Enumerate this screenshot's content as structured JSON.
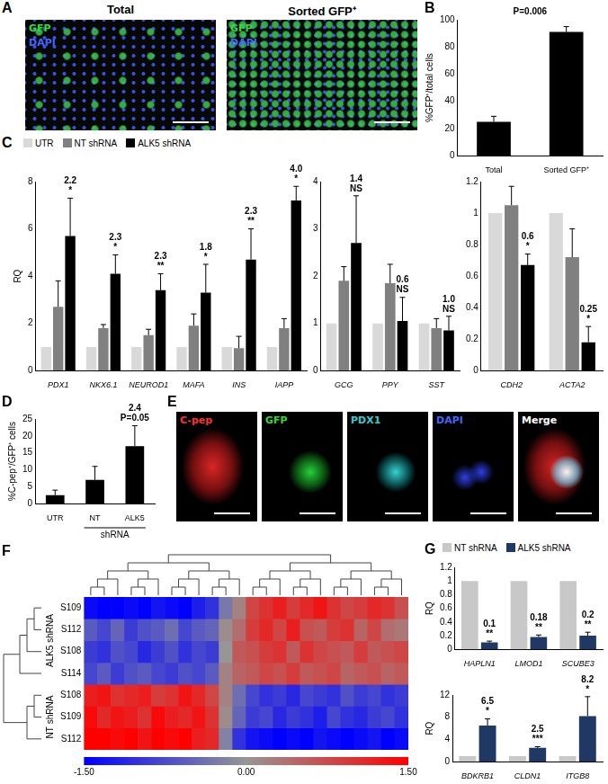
{
  "images": [
    {
      "panel": "A",
      "items": [
        {
          "title": "Total",
          "labels": [
            {
              "text": "GFP",
              "color": "#33dd33"
            },
            {
              "text": "DAPI",
              "color": "#4466ff"
            }
          ]
        },
        {
          "title": "Sorted GFP⁺",
          "labels": [
            {
              "text": "GFP",
              "color": "#33dd33"
            },
            {
              "text": "DAPI",
              "color": "#4466ff"
            }
          ]
        }
      ]
    },
    {
      "panel": "E",
      "items": [
        {
          "labels": [
            {
              "text": "C-pep",
              "color": "#ff3030"
            }
          ]
        },
        {
          "labels": [
            {
              "text": "GFP",
              "color": "#33dd33"
            }
          ]
        },
        {
          "labels": [
            {
              "text": "PDX1",
              "color": "#33cccc"
            }
          ]
        },
        {
          "labels": [
            {
              "text": "DAPI",
              "color": "#4466ff"
            }
          ]
        },
        {
          "labels": [
            {
              "text": "Merge",
              "color": "#ffffff"
            }
          ]
        }
      ]
    }
  ],
  "chart_data": [
    {
      "panel": "B",
      "type": "bar",
      "categories": [
        "Total",
        "Sorted GFP⁺"
      ],
      "values": [
        25,
        91
      ],
      "errors": [
        4,
        4
      ],
      "color": "#000000",
      "ylabel": "%GFP⁺/total cells",
      "ylim": [
        0,
        100
      ],
      "yticks": [
        0,
        20,
        40,
        60,
        80,
        100
      ],
      "annotation": "P=0.006"
    },
    {
      "panel": "C",
      "type": "bar",
      "legend": "top",
      "categories": [
        "PDX1",
        "NKX6.1",
        "NEUROD1",
        "MAFA",
        "INS",
        "IAPP"
      ],
      "series": [
        {
          "name": "UTR",
          "color": "#d9d9d9",
          "values": [
            1,
            1,
            1,
            1,
            1,
            1
          ]
        },
        {
          "name": "NT shRNA",
          "color": "#808080",
          "values": [
            2.7,
            1.8,
            1.5,
            1.9,
            0.95,
            1.8
          ],
          "errors": [
            1.1,
            0.15,
            0.25,
            0.5,
            0.5,
            0.4
          ]
        },
        {
          "name": "ALK5 shRNA",
          "color": "#000000",
          "values": [
            5.7,
            4.1,
            3.4,
            3.3,
            4.7,
            7.2
          ],
          "errors": [
            1.6,
            0.8,
            0.7,
            1.2,
            1.3,
            0.6
          ]
        }
      ],
      "ylabel": "RQ",
      "ylim": [
        0,
        8
      ],
      "yticks": [
        0,
        2,
        4,
        6,
        8
      ],
      "annotations": [
        [
          "2.2",
          "*"
        ],
        [
          "2.3",
          "*"
        ],
        [
          "2.3",
          "**"
        ],
        [
          "1.8",
          "*"
        ],
        [
          "2.3",
          "**"
        ],
        [
          "4.0",
          "*"
        ]
      ]
    },
    {
      "type": "bar",
      "categories": [
        "GCG",
        "PPY",
        "SST"
      ],
      "series": [
        {
          "name": "UTR",
          "color": "#d9d9d9",
          "values": [
            1,
            1,
            1
          ]
        },
        {
          "name": "NT shRNA",
          "color": "#808080",
          "values": [
            1.9,
            1.85,
            0.9
          ],
          "errors": [
            0.3,
            0.4,
            0.2
          ]
        },
        {
          "name": "ALK5 shRNA",
          "color": "#000000",
          "values": [
            2.7,
            1.05,
            0.85
          ],
          "errors": [
            1.0,
            0.5,
            0.3
          ]
        }
      ],
      "ylim": [
        0,
        4
      ],
      "yticks": [
        0,
        1,
        2,
        3,
        4
      ],
      "annotations": [
        [
          "1.4",
          "NS"
        ],
        [
          "0.6",
          "NS"
        ],
        [
          "1.0",
          "NS"
        ]
      ]
    },
    {
      "type": "bar",
      "categories": [
        "CDH2",
        "ACTA2"
      ],
      "series": [
        {
          "name": "UTR",
          "color": "#d9d9d9",
          "values": [
            1,
            1
          ]
        },
        {
          "name": "NT shRNA",
          "color": "#808080",
          "values": [
            1.05,
            0.72
          ],
          "errors": [
            0.12,
            0.18
          ]
        },
        {
          "name": "ALK5 shRNA",
          "color": "#000000",
          "values": [
            0.67,
            0.18
          ],
          "errors": [
            0.07,
            0.1
          ]
        }
      ],
      "ylim": [
        0,
        1.2
      ],
      "yticks": [
        0,
        0.2,
        0.4,
        0.6,
        0.8,
        1,
        1.2
      ],
      "annotations": [
        [
          "0.6",
          "*"
        ],
        [
          "0.25",
          "*"
        ]
      ]
    },
    {
      "panel": "D",
      "type": "bar",
      "categories": [
        "UTR",
        "NT",
        "ALK5"
      ],
      "values": [
        2.5,
        7,
        17
      ],
      "errors": [
        1.5,
        4,
        6
      ],
      "color": "#000000",
      "group": {
        "text": "shRNA",
        "categories": [
          "NT",
          "ALK5"
        ]
      },
      "ylabel": "%C-pep⁺/GFP⁺ cells",
      "ylim": [
        0,
        25
      ],
      "yticks": [
        0,
        5,
        10,
        15,
        20,
        25
      ],
      "annotations": [
        null,
        null,
        [
          "2.4",
          "P=0.05"
        ]
      ]
    },
    {
      "panel": "F",
      "type": "heatmap",
      "row_groups": [
        {
          "label": "ALK5 shRNA",
          "rows": [
            "S109",
            "S112",
            "S108",
            "S114"
          ]
        },
        {
          "label": "NT shRNA",
          "rows": [
            "S108",
            "S109",
            "S112"
          ]
        }
      ],
      "cells": [
        [
          -1.4,
          -1.5,
          -1.5,
          -1.4,
          -1.5,
          -1.3,
          -1.4,
          -1.5,
          -1.2,
          -1.0,
          -0.3,
          0.2,
          0.8,
          1.0,
          1.2,
          0.9,
          1.1,
          1.3,
          1.0,
          0.8,
          0.9,
          1.1,
          1.0,
          0.7
        ],
        [
          -0.6,
          -0.8,
          -0.5,
          -0.9,
          -0.7,
          -0.6,
          -0.4,
          -0.8,
          -0.6,
          -0.5,
          0.1,
          0.4,
          0.9,
          1.1,
          0.8,
          1.2,
          0.7,
          0.6,
          0.9,
          1.0,
          0.5,
          0.8,
          0.4,
          0.3
        ],
        [
          -0.9,
          -1.0,
          -0.7,
          -0.8,
          -1.1,
          -0.9,
          -0.7,
          -1.0,
          -0.8,
          -0.9,
          0.0,
          0.6,
          0.7,
          0.9,
          1.0,
          0.6,
          1.0,
          0.8,
          0.7,
          0.6,
          0.9,
          0.6,
          0.7,
          0.8
        ],
        [
          -0.8,
          -0.6,
          -0.9,
          -0.7,
          -0.6,
          -0.8,
          -0.9,
          -0.7,
          -0.8,
          -0.6,
          0.2,
          0.5,
          0.6,
          0.8,
          0.7,
          0.9,
          0.6,
          0.7,
          0.8,
          0.5,
          0.6,
          0.7,
          0.5,
          0.6
        ],
        [
          1.2,
          1.3,
          1.0,
          1.1,
          1.2,
          0.9,
          1.0,
          1.3,
          1.1,
          0.8,
          0.2,
          -0.4,
          -0.8,
          -1.0,
          -0.9,
          -1.1,
          -0.8,
          -0.9,
          -1.0,
          -0.7,
          -0.9,
          -0.8,
          -1.0,
          -0.9
        ],
        [
          1.4,
          1.1,
          1.3,
          1.2,
          1.0,
          1.4,
          1.2,
          1.1,
          1.3,
          1.0,
          0.1,
          -0.5,
          -0.9,
          -0.8,
          -1.1,
          -0.9,
          -1.0,
          -1.2,
          -0.8,
          -1.0,
          -1.1,
          -0.9,
          -0.8,
          -1.0
        ],
        [
          1.5,
          1.5,
          1.4,
          1.5,
          1.3,
          1.5,
          1.4,
          1.5,
          1.2,
          1.1,
          -0.2,
          -1.0,
          -1.3,
          -1.4,
          -1.5,
          -1.4,
          -1.5,
          -1.3,
          -1.4,
          -1.5,
          -1.4,
          -1.3,
          -1.5,
          -1.4
        ]
      ],
      "colorbar": {
        "range": [
          -1.5,
          1.5
        ],
        "ticks": [
          {
            "value": -1.5,
            "label": "-1.50"
          },
          {
            "value": 0,
            "label": "0.00"
          },
          {
            "value": 1.5,
            "label": "1.50"
          }
        ]
      }
    },
    {
      "panel": "G",
      "type": "bar",
      "legend": "top",
      "categories": [
        "HAPLN1",
        "LMOD1",
        "SCUBE3"
      ],
      "series": [
        {
          "name": "NT shRNA",
          "color": "#c8c8c8",
          "values": [
            1,
            1,
            1
          ]
        },
        {
          "name": "ALK5 shRNA",
          "color": "#1f3864",
          "values": [
            0.1,
            0.18,
            0.2
          ],
          "errors": [
            0.02,
            0.03,
            0.05
          ]
        }
      ],
      "ylabel": "RQ",
      "ylim": [
        0,
        1.2
      ],
      "yticks": [
        0,
        0.2,
        0.4,
        0.6,
        0.8,
        1,
        1.2
      ],
      "annotations": [
        [
          "0.1",
          "**"
        ],
        [
          "0.18",
          "**"
        ],
        [
          "0.2",
          "**"
        ]
      ]
    },
    {
      "type": "bar",
      "categories": [
        "BDKRB1",
        "CLDN1",
        "ITGB8"
      ],
      "series": [
        {
          "name": "NT shRNA",
          "color": "#c8c8c8",
          "values": [
            1,
            1,
            1
          ]
        },
        {
          "name": "ALK5 shRNA",
          "color": "#1f3864",
          "values": [
            6.5,
            2.5,
            8.2
          ],
          "errors": [
            1.2,
            0.2,
            3.5
          ]
        }
      ],
      "ylabel": "RQ",
      "ylim": [
        0,
        12
      ],
      "yticks": [
        0,
        4,
        8,
        12
      ],
      "annotations": [
        [
          "6.5",
          "*"
        ],
        [
          "2.5",
          "***"
        ],
        [
          "8.2",
          "*"
        ]
      ]
    }
  ]
}
